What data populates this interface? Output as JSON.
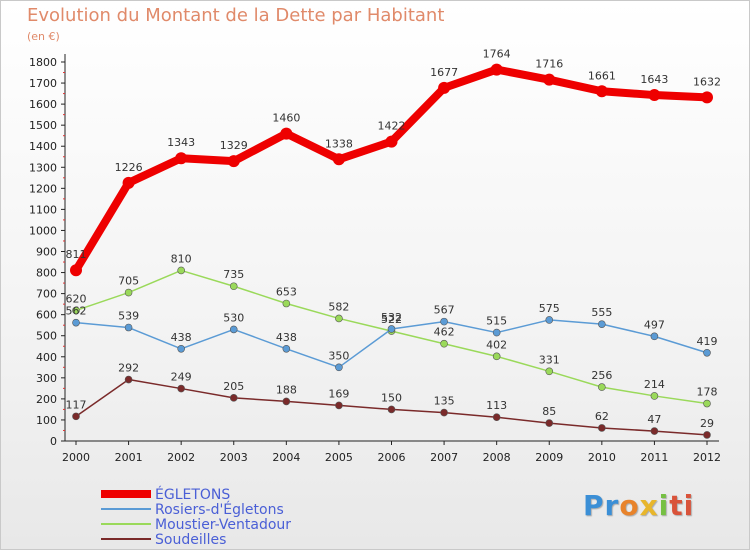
{
  "title": "Evolution du Montant de la Dette par Habitant",
  "subtitle": "(en €)",
  "logo_text": "Proxiti",
  "chart_data": {
    "type": "line",
    "x": [
      "2000",
      "2001",
      "2002",
      "2003",
      "2004",
      "2005",
      "2006",
      "2007",
      "2008",
      "2009",
      "2010",
      "2011",
      "2012"
    ],
    "ylim": [
      0,
      1800
    ],
    "yticks": [
      0,
      100,
      200,
      300,
      400,
      500,
      600,
      700,
      800,
      900,
      1000,
      1100,
      1200,
      1300,
      1400,
      1500,
      1600,
      1700,
      1800
    ],
    "grid": false,
    "legend_position": "bottom-left",
    "series": [
      {
        "name": "ÉGLETONS",
        "color": "#ee0000",
        "values": [
          811,
          1226,
          1343,
          1329,
          1460,
          1338,
          1422,
          1677,
          1764,
          1716,
          1661,
          1643,
          1632
        ]
      },
      {
        "name": "Rosiers-d'Égletons",
        "color": "#5b9bd5",
        "values": [
          562,
          539,
          438,
          530,
          438,
          350,
          532,
          567,
          515,
          575,
          555,
          497,
          419
        ]
      },
      {
        "name": "Moustier-Ventadour",
        "color": "#9ad95a",
        "values": [
          620,
          705,
          810,
          735,
          653,
          582,
          522,
          462,
          402,
          331,
          256,
          214,
          178
        ]
      },
      {
        "name": "Soudeilles",
        "color": "#7a2a2a",
        "values": [
          117,
          292,
          249,
          205,
          188,
          169,
          150,
          135,
          113,
          85,
          62,
          47,
          29
        ]
      }
    ]
  }
}
